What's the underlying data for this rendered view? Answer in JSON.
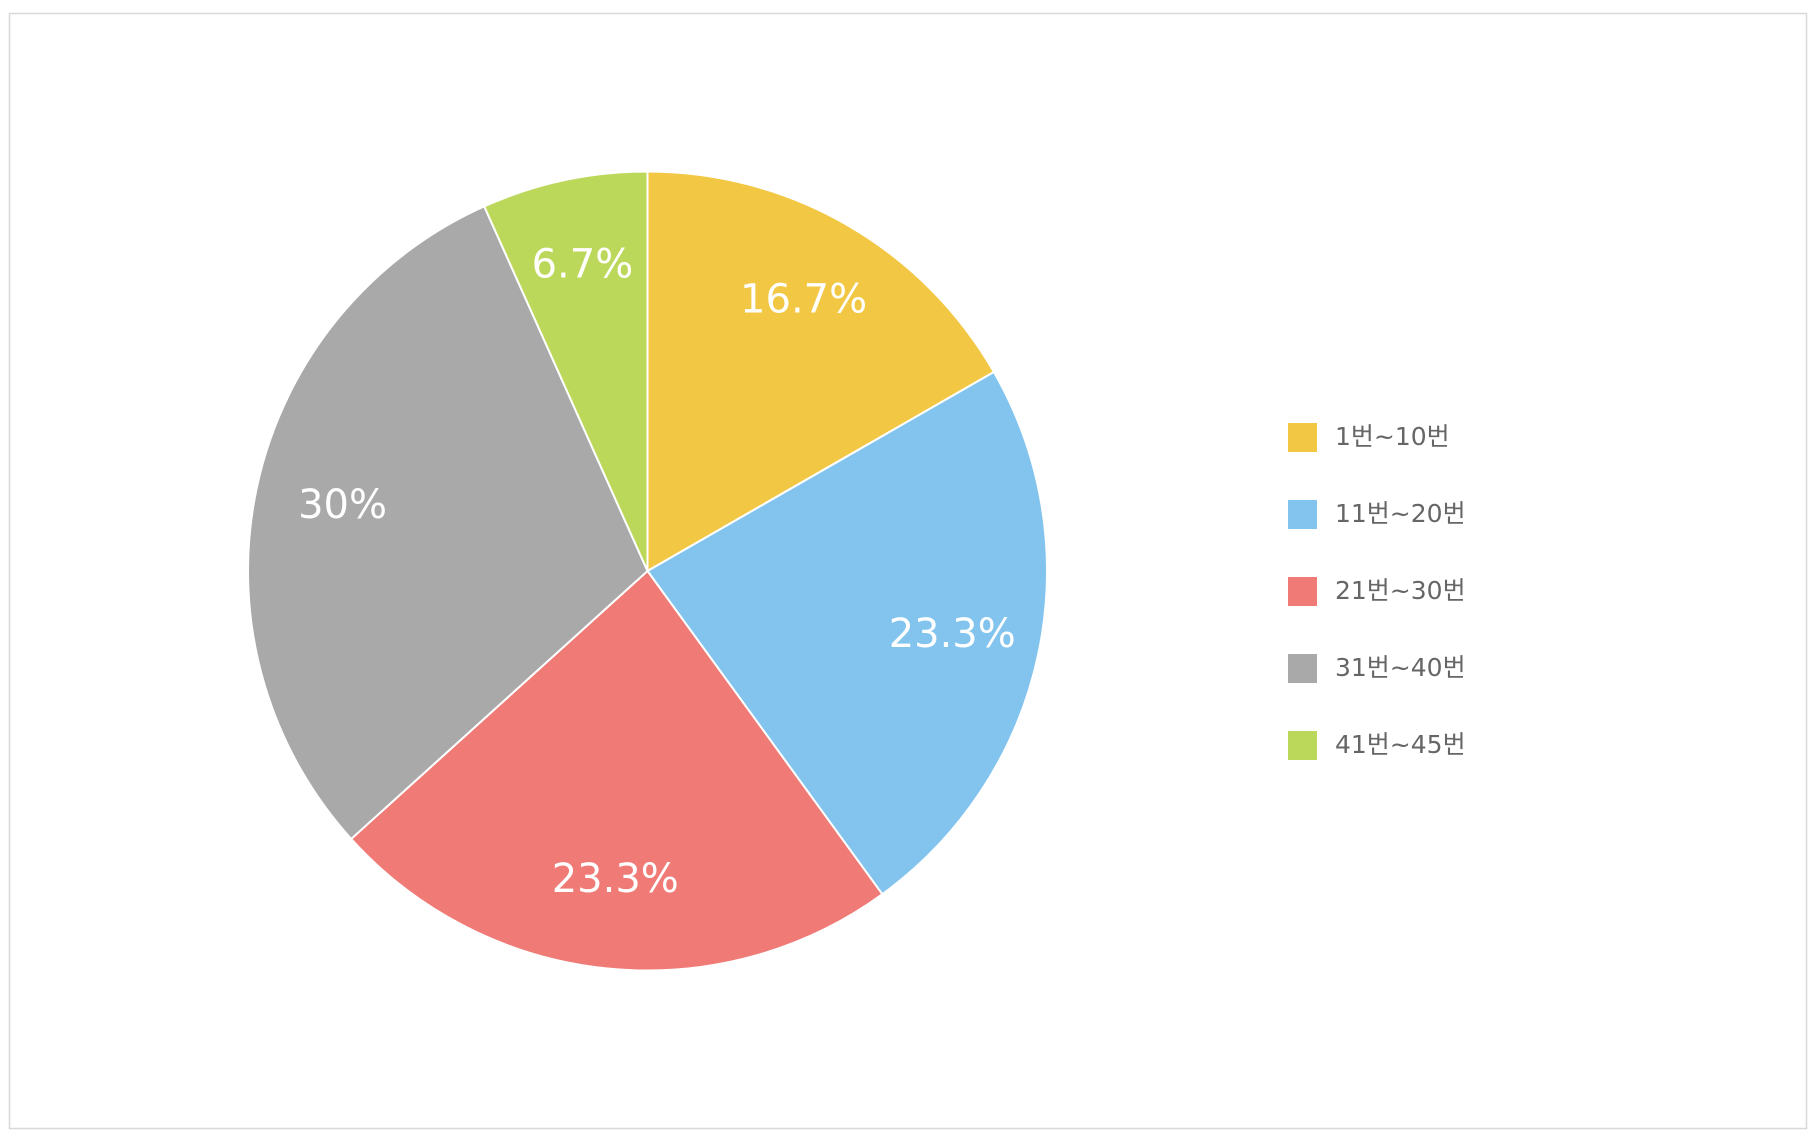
{
  "chart_data": {
    "type": "pie",
    "categories": [
      "1번~10번",
      "11번~20번",
      "21번~30번",
      "31번~40번",
      "41번~45번"
    ],
    "values": [
      16.7,
      23.3,
      23.3,
      30,
      6.7
    ],
    "value_labels": [
      "16.7%",
      "23.3%",
      "23.3%",
      "30%",
      "6.7%"
    ],
    "colors": [
      "#f2c744",
      "#82c4ee",
      "#ef7a76",
      "#a9a9a9",
      "#bbd85b"
    ],
    "legend": "right"
  }
}
